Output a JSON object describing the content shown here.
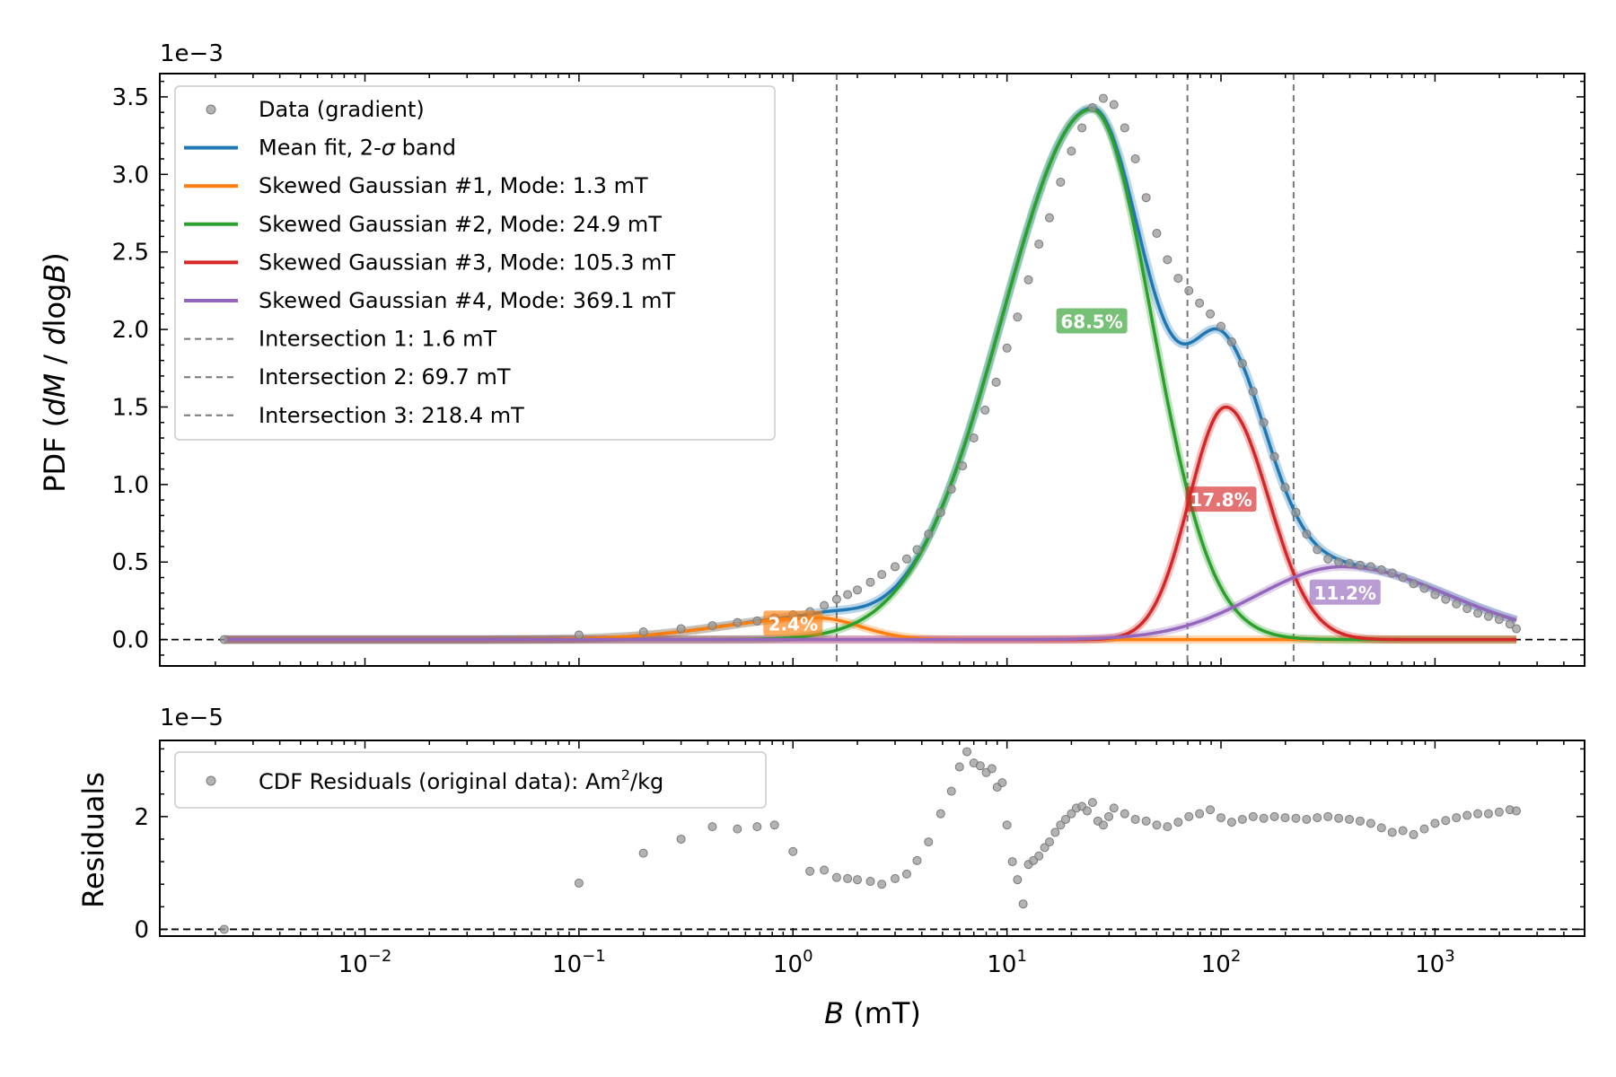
{
  "colors": {
    "data": "#9a9a9a",
    "mean": "#1f77b4",
    "g1": "#ff7f0e",
    "g2": "#2ca02c",
    "g3": "#d62728",
    "g4": "#9467bd",
    "intersection": "#777777"
  },
  "chart_data": [
    {
      "type": "line",
      "panel": "top",
      "ylabel_prefix": "PDF (",
      "ylabel_italic_1": "dM",
      "ylabel_mid": " / ",
      "ylabel_italic_2": "d",
      "ylabel_mid2": "log",
      "ylabel_italic_3": "B",
      "ylabel_suffix": ")",
      "offset_text": "1e−3",
      "x_scale": "log",
      "xlim": [
        0.0011,
        5000
      ],
      "ylim": [
        -0.17,
        3.65
      ],
      "y_ticks": [
        0.0,
        0.5,
        1.0,
        1.5,
        2.0,
        2.5,
        3.0,
        3.5
      ],
      "y_tick_labels": [
        "0.0",
        "0.5",
        "1.0",
        "1.5",
        "2.0",
        "2.5",
        "3.0",
        "3.5"
      ],
      "legend": {
        "position": "upper-left",
        "entries": [
          {
            "label": "Data (gradient)",
            "kind": "marker",
            "color_key": "data"
          },
          {
            "label_pre": "Mean fit, 2-",
            "label_sigma": "σ",
            "label_post": " band",
            "kind": "line",
            "color_key": "mean"
          },
          {
            "label": "Skewed Gaussian #1, Mode: 1.3 mT",
            "kind": "line",
            "color_key": "g1"
          },
          {
            "label": "Skewed Gaussian #2, Mode: 24.9 mT",
            "kind": "line",
            "color_key": "g2"
          },
          {
            "label": "Skewed Gaussian #3, Mode: 105.3 mT",
            "kind": "line",
            "color_key": "g3"
          },
          {
            "label": "Skewed Gaussian #4, Mode: 369.1 mT",
            "kind": "line",
            "color_key": "g4"
          },
          {
            "label": "Intersection 1: 1.6 mT",
            "kind": "dashed",
            "color_key": "intersection"
          },
          {
            "label": "Intersection 2: 69.7 mT",
            "kind": "dashed",
            "color_key": "intersection"
          },
          {
            "label": "Intersection 3: 218.4 mT",
            "kind": "dashed",
            "color_key": "intersection"
          }
        ]
      },
      "intersections_mT": [
        1.6,
        69.7,
        218.4
      ],
      "components": [
        {
          "name": "g1",
          "amplitude": 0.14,
          "mode_mT": 1.3,
          "sigma_left": 0.45,
          "sigma_right": 0.2
        },
        {
          "name": "g2",
          "amplitude": 3.42,
          "mode_mT": 24.9,
          "sigma_left": 0.42,
          "sigma_right": 0.28
        },
        {
          "name": "g3",
          "amplitude": 1.5,
          "mode_mT": 105.3,
          "sigma_left": 0.17,
          "sigma_right": 0.2
        },
        {
          "name": "g4",
          "amplitude": 0.47,
          "mode_mT": 369.1,
          "sigma_left": 0.4,
          "sigma_right": 0.5
        }
      ],
      "component_labels": [
        {
          "text": "2.4%",
          "x": 1.0,
          "y": 0.1,
          "color_key": "g1"
        },
        {
          "text": "68.5%",
          "x": 24.9,
          "y": 2.05,
          "color_key": "g2"
        },
        {
          "text": "17.8%",
          "x": 100,
          "y": 0.9,
          "color_key": "g3"
        },
        {
          "text": "11.2%",
          "x": 380,
          "y": 0.3,
          "color_key": "g4"
        }
      ],
      "data_points": [
        [
          0.0022,
          0.0
        ],
        [
          0.1,
          0.03
        ],
        [
          0.2,
          0.05
        ],
        [
          0.3,
          0.07
        ],
        [
          0.42,
          0.09
        ],
        [
          0.55,
          0.11
        ],
        [
          0.68,
          0.12
        ],
        [
          0.82,
          0.14
        ],
        [
          1.0,
          0.16
        ],
        [
          1.2,
          0.18
        ],
        [
          1.4,
          0.22
        ],
        [
          1.6,
          0.26
        ],
        [
          1.8,
          0.29
        ],
        [
          2.0,
          0.32
        ],
        [
          2.3,
          0.37
        ],
        [
          2.6,
          0.42
        ],
        [
          3.0,
          0.47
        ],
        [
          3.4,
          0.52
        ],
        [
          3.8,
          0.58
        ],
        [
          4.3,
          0.68
        ],
        [
          4.9,
          0.82
        ],
        [
          5.5,
          0.97
        ],
        [
          6.2,
          1.12
        ],
        [
          7.0,
          1.3
        ],
        [
          7.9,
          1.48
        ],
        [
          8.9,
          1.66
        ],
        [
          10.0,
          1.88
        ],
        [
          11.2,
          2.08
        ],
        [
          12.6,
          2.32
        ],
        [
          14.1,
          2.55
        ],
        [
          15.8,
          2.72
        ],
        [
          17.8,
          2.95
        ],
        [
          20.0,
          3.15
        ],
        [
          22.4,
          3.3
        ],
        [
          25.1,
          3.43
        ],
        [
          28.2,
          3.49
        ],
        [
          31.6,
          3.45
        ],
        [
          35.5,
          3.3
        ],
        [
          39.8,
          3.1
        ],
        [
          44.7,
          2.85
        ],
        [
          50.1,
          2.62
        ],
        [
          56.2,
          2.45
        ],
        [
          63.1,
          2.33
        ],
        [
          70.8,
          2.25
        ],
        [
          79.4,
          2.17
        ],
        [
          89.1,
          2.1
        ],
        [
          100.0,
          2.02
        ],
        [
          112.2,
          1.92
        ],
        [
          125.9,
          1.78
        ],
        [
          141.3,
          1.6
        ],
        [
          158.5,
          1.4
        ],
        [
          177.8,
          1.18
        ],
        [
          199.5,
          0.98
        ],
        [
          223.9,
          0.82
        ],
        [
          251.2,
          0.68
        ],
        [
          281.8,
          0.58
        ],
        [
          316.2,
          0.52
        ],
        [
          354.8,
          0.5
        ],
        [
          398.1,
          0.49
        ],
        [
          446.7,
          0.48
        ],
        [
          501.2,
          0.47
        ],
        [
          562.3,
          0.45
        ],
        [
          631.0,
          0.43
        ],
        [
          707.9,
          0.4
        ],
        [
          794.3,
          0.36
        ],
        [
          891.3,
          0.33
        ],
        [
          1000.0,
          0.29
        ],
        [
          1122.0,
          0.26
        ],
        [
          1259.0,
          0.23
        ],
        [
          1413.0,
          0.2
        ],
        [
          1585.0,
          0.17
        ],
        [
          1778.0,
          0.15
        ],
        [
          1995.0,
          0.13
        ],
        [
          2239.0,
          0.1
        ],
        [
          2400.0,
          0.07
        ]
      ]
    },
    {
      "type": "scatter",
      "panel": "bottom",
      "ylabel": "Residuals",
      "offset_text": "1e−5",
      "x_scale": "log",
      "xlim": [
        0.0011,
        5000
      ],
      "ylim": [
        -0.12,
        3.35
      ],
      "y_ticks": [
        0,
        2
      ],
      "y_tick_labels": [
        "0",
        "2"
      ],
      "x_tick_bases": [
        "10",
        "10",
        "10",
        "10",
        "10",
        "10"
      ],
      "x_tick_exponents": [
        "−2",
        "−1",
        "0",
        "1",
        "2",
        "3"
      ],
      "x_tick_values": [
        0.01,
        0.1,
        1,
        10,
        100,
        1000
      ],
      "xlabel_italic": "B",
      "xlabel_rest": " (mT)",
      "legend": {
        "position": "upper-left",
        "label_pre": "CDF Residuals (original data): Am",
        "label_sup": "2",
        "label_post": "/kg",
        "color_key": "data"
      },
      "points": [
        [
          0.0022,
          0.0
        ],
        [
          0.1,
          0.82
        ],
        [
          0.2,
          1.35
        ],
        [
          0.3,
          1.6
        ],
        [
          0.42,
          1.82
        ],
        [
          0.55,
          1.78
        ],
        [
          0.68,
          1.82
        ],
        [
          0.82,
          1.85
        ],
        [
          1.0,
          1.38
        ],
        [
          1.2,
          1.03
        ],
        [
          1.4,
          1.05
        ],
        [
          1.6,
          0.92
        ],
        [
          1.8,
          0.9
        ],
        [
          2.0,
          0.88
        ],
        [
          2.3,
          0.85
        ],
        [
          2.6,
          0.8
        ],
        [
          3.0,
          0.9
        ],
        [
          3.4,
          0.98
        ],
        [
          3.8,
          1.22
        ],
        [
          4.3,
          1.55
        ],
        [
          4.9,
          2.05
        ],
        [
          5.5,
          2.45
        ],
        [
          6.0,
          2.88
        ],
        [
          6.5,
          3.15
        ],
        [
          7.0,
          2.95
        ],
        [
          7.5,
          2.9
        ],
        [
          8.0,
          2.78
        ],
        [
          8.5,
          2.85
        ],
        [
          9.0,
          2.52
        ],
        [
          9.5,
          2.6
        ],
        [
          10.0,
          1.85
        ],
        [
          10.6,
          1.2
        ],
        [
          11.2,
          0.88
        ],
        [
          11.9,
          0.45
        ],
        [
          12.6,
          1.15
        ],
        [
          13.3,
          1.22
        ],
        [
          14.1,
          1.3
        ],
        [
          15.0,
          1.45
        ],
        [
          15.8,
          1.55
        ],
        [
          16.8,
          1.72
        ],
        [
          17.8,
          1.85
        ],
        [
          18.8,
          1.95
        ],
        [
          20.0,
          2.05
        ],
        [
          21.1,
          2.15
        ],
        [
          22.4,
          2.18
        ],
        [
          23.7,
          2.1
        ],
        [
          25.1,
          2.25
        ],
        [
          26.6,
          1.92
        ],
        [
          28.2,
          1.85
        ],
        [
          29.9,
          2.0
        ],
        [
          31.6,
          2.15
        ],
        [
          35.5,
          2.05
        ],
        [
          39.8,
          1.95
        ],
        [
          44.7,
          1.92
        ],
        [
          50.1,
          1.85
        ],
        [
          56.2,
          1.82
        ],
        [
          63.1,
          1.9
        ],
        [
          70.8,
          2.0
        ],
        [
          79.4,
          2.05
        ],
        [
          89.1,
          2.12
        ],
        [
          100.0,
          1.98
        ],
        [
          112.2,
          1.9
        ],
        [
          125.9,
          1.95
        ],
        [
          141.3,
          2.0
        ],
        [
          158.5,
          1.97
        ],
        [
          177.8,
          2.0
        ],
        [
          199.5,
          1.98
        ],
        [
          223.9,
          1.97
        ],
        [
          251.2,
          1.95
        ],
        [
          281.8,
          1.98
        ],
        [
          316.2,
          2.0
        ],
        [
          354.8,
          1.97
        ],
        [
          398.1,
          1.95
        ],
        [
          446.7,
          1.92
        ],
        [
          501.2,
          1.88
        ],
        [
          562.3,
          1.8
        ],
        [
          631.0,
          1.72
        ],
        [
          707.9,
          1.75
        ],
        [
          794.3,
          1.68
        ],
        [
          891.3,
          1.78
        ],
        [
          1000.0,
          1.88
        ],
        [
          1122.0,
          1.93
        ],
        [
          1259.0,
          1.98
        ],
        [
          1413.0,
          2.02
        ],
        [
          1585.0,
          2.05
        ],
        [
          1778.0,
          2.05
        ],
        [
          1995.0,
          2.08
        ],
        [
          2239.0,
          2.12
        ],
        [
          2400.0,
          2.1
        ]
      ]
    }
  ]
}
